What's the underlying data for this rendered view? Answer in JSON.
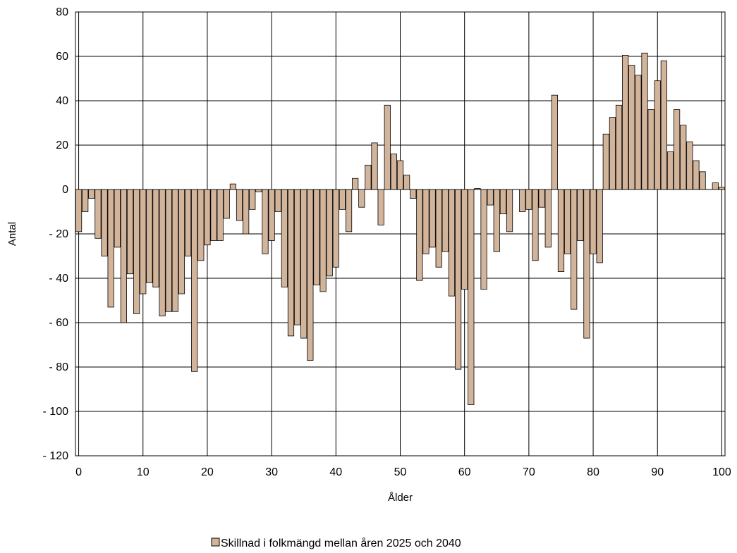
{
  "chart_data": {
    "type": "bar",
    "title": "",
    "xlabel": "Ålder",
    "ylabel": "Antal",
    "ylim": [
      -120,
      80
    ],
    "xlim": [
      0,
      100
    ],
    "yticks": [
      80,
      60,
      40,
      20,
      0,
      -20,
      -40,
      -60,
      -80,
      -100,
      -120
    ],
    "ytick_labels": [
      "80",
      "60",
      "40",
      "20",
      "0",
      "- 20",
      "- 40",
      "- 60",
      "- 80",
      "- 100",
      "- 120"
    ],
    "xticks": [
      0,
      10,
      20,
      30,
      40,
      50,
      60,
      70,
      80,
      90,
      100
    ],
    "xtick_labels": [
      "0",
      "10",
      "20",
      "30",
      "40",
      "50",
      "60",
      "70",
      "80",
      "90",
      "100"
    ],
    "grid": true,
    "legend_position": "bottom",
    "bar_color": "#d2b49b",
    "bar_edge_color": "#000000",
    "series": [
      {
        "name": "Skillnad i folkmängd mellan åren 2025 och 2040",
        "x": [
          0,
          1,
          2,
          3,
          4,
          5,
          6,
          7,
          8,
          9,
          10,
          11,
          12,
          13,
          14,
          15,
          16,
          17,
          18,
          19,
          20,
          21,
          22,
          23,
          24,
          25,
          26,
          27,
          28,
          29,
          30,
          31,
          32,
          33,
          34,
          35,
          36,
          37,
          38,
          39,
          40,
          41,
          42,
          43,
          44,
          45,
          46,
          47,
          48,
          49,
          50,
          51,
          52,
          53,
          54,
          55,
          56,
          57,
          58,
          59,
          60,
          61,
          62,
          63,
          64,
          65,
          66,
          67,
          68,
          69,
          70,
          71,
          72,
          73,
          74,
          75,
          76,
          77,
          78,
          79,
          80,
          81,
          82,
          83,
          84,
          85,
          86,
          87,
          88,
          89,
          90,
          91,
          92,
          93,
          94,
          95,
          96,
          97,
          98,
          99,
          100
        ],
        "values": [
          -19,
          -10,
          -4,
          -22,
          -30,
          -53,
          -26,
          -60,
          -38,
          -56,
          -47,
          -42,
          -44,
          -57,
          -55,
          -55,
          -47,
          -30,
          -82,
          -32,
          -25,
          -23,
          -23,
          -13,
          2.5,
          -14,
          -20,
          -9,
          -1,
          -29,
          -23,
          -10,
          -44,
          -66,
          -61,
          -67,
          -77,
          -43,
          -46,
          -39,
          -35,
          -9,
          -19,
          5,
          -8,
          11,
          21,
          -16,
          38,
          16,
          13,
          6.5,
          -4,
          -41,
          -29,
          -26,
          -35,
          -28,
          -48,
          -81,
          -45,
          -97,
          0.5,
          -45,
          -7,
          -28,
          -11,
          -19,
          0,
          -10,
          -9,
          -32,
          -8,
          -26,
          42.5,
          -37,
          -29,
          -54,
          -23,
          -67,
          -29,
          -33,
          25,
          32.5,
          38,
          60.5,
          56,
          51.5,
          61.5,
          36,
          49,
          58,
          17,
          36,
          29,
          21.5,
          13,
          8,
          0,
          3,
          1
        ]
      }
    ]
  }
}
